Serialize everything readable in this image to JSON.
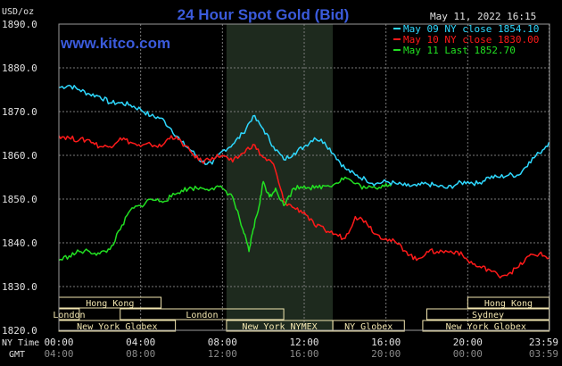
{
  "chart_data": {
    "type": "line",
    "title": "24 Hour Spot Gold (Bid)",
    "site": "www.kitco.com",
    "unit_label": "USD/oz",
    "datetime": "May 11, 2022 16:15",
    "ylim": [
      1820,
      1890
    ],
    "y_ticks": [
      "1890.0",
      "1880.0",
      "1870.0",
      "1860.0",
      "1850.0",
      "1840.0",
      "1830.0",
      "1820.0"
    ],
    "x_ticks_ny": [
      "00:00",
      "04:00",
      "08:00",
      "12:00",
      "16:00",
      "20:00",
      "23:59"
    ],
    "x_ticks_gmt": [
      "04:00",
      "08:00",
      "12:00",
      "16:00",
      "20:00",
      "00:00",
      "03:59"
    ],
    "ny_time_label": "NY Time",
    "gmt_label": "GMT",
    "nymex_session_hours": [
      8.2,
      13.4
    ],
    "colors": {
      "background": "#000000",
      "grid": "#7a7a7a",
      "session_shade": "#1e2a1e",
      "title": "#3b5bdc"
    },
    "legend": [
      {
        "label": "May 09 NY close 1854.10",
        "color": "#2ed8ff"
      },
      {
        "label": "May 10 NY close 1830.00",
        "color": "#ff1a1a"
      },
      {
        "label": "May 11 Last 1852.70",
        "color": "#22e022"
      }
    ],
    "series": [
      {
        "name": "May 09",
        "color": "#2ed8ff",
        "x": [
          0,
          0.5,
          1,
          1.5,
          2,
          2.5,
          3,
          3.5,
          4,
          4.5,
          5,
          5.5,
          6,
          6.5,
          7,
          7.5,
          8,
          8.5,
          9,
          9.5,
          10,
          10.5,
          11,
          11.5,
          12,
          12.5,
          13,
          13.5,
          14,
          14.5,
          15,
          15.5,
          16,
          16.5,
          17,
          17.5,
          18,
          18.5,
          19,
          19.5,
          20,
          20.5,
          21,
          21.5,
          22,
          22.5,
          23,
          23.5,
          23.98
        ],
        "y": [
          1875.5,
          1876,
          1875,
          1874,
          1873.5,
          1872,
          1872,
          1871.5,
          1870.5,
          1869,
          1868.5,
          1866,
          1863,
          1861,
          1858.5,
          1858,
          1861,
          1862.5,
          1865,
          1869,
          1866,
          1862,
          1859,
          1860.5,
          1862,
          1864,
          1863,
          1860,
          1857,
          1855.5,
          1854.5,
          1853.5,
          1854,
          1853.5,
          1853,
          1853,
          1853.5,
          1853,
          1852.5,
          1853.5,
          1854,
          1853.5,
          1855,
          1855,
          1855.5,
          1855.5,
          1858.5,
          1860.5,
          1863
        ]
      },
      {
        "name": "May 10",
        "color": "#ff1a1a",
        "x": [
          0,
          0.5,
          1,
          1.5,
          2,
          2.5,
          3,
          3.5,
          4,
          4.5,
          5,
          5.5,
          6,
          6.5,
          7,
          7.5,
          8,
          8.5,
          9,
          9.5,
          10,
          10.5,
          11,
          11.5,
          12,
          12.5,
          13,
          13.5,
          14,
          14.5,
          15,
          15.5,
          16,
          16.5,
          17,
          17.5,
          18,
          18.5,
          19,
          19.5,
          20,
          20.5,
          21,
          21.5,
          22,
          22.5,
          23,
          23.5,
          23.98
        ],
        "y": [
          1864.5,
          1864,
          1863.5,
          1863.5,
          1862,
          1862,
          1864,
          1863,
          1862,
          1862.5,
          1862,
          1864.5,
          1863,
          1860.5,
          1858.5,
          1859.5,
          1860,
          1858.5,
          1860.5,
          1862.5,
          1859.5,
          1858,
          1849.5,
          1848,
          1847,
          1844,
          1843,
          1842,
          1841,
          1846,
          1845,
          1842,
          1841,
          1840,
          1838,
          1836,
          1838,
          1838,
          1838,
          1838,
          1836,
          1834.5,
          1834,
          1832.5,
          1833,
          1834.5,
          1837,
          1837.5,
          1836.5
        ]
      },
      {
        "name": "May 11",
        "color": "#22e022",
        "x": [
          0,
          0.5,
          1,
          1.5,
          2,
          2.5,
          3,
          3.5,
          4,
          4.5,
          5,
          5.5,
          6,
          6.5,
          7,
          7.5,
          8,
          8.5,
          9,
          9.3,
          9.5,
          9.8,
          10,
          10.3,
          10.6,
          11,
          11.5,
          12,
          12.5,
          13,
          13.5,
          14,
          14.5,
          15,
          15.5,
          16,
          16.25
        ],
        "y": [
          1836,
          1837,
          1838,
          1838,
          1837.5,
          1838.5,
          1843,
          1847.5,
          1848.5,
          1850,
          1849.5,
          1850.5,
          1852,
          1852.5,
          1852.5,
          1852.5,
          1852.5,
          1850.5,
          1843,
          1838,
          1843,
          1848.5,
          1854,
          1850.5,
          1852.5,
          1848.5,
          1852.5,
          1853,
          1852.5,
          1853,
          1853.5,
          1855,
          1853.5,
          1852.5,
          1852.5,
          1853.5,
          1853
        ]
      }
    ],
    "markets_row1": [
      {
        "label": "Hong Kong",
        "start": 0,
        "end": 5.0,
        "color": "#f2e6b0"
      },
      {
        "label": "Hong Kong",
        "start": 20.0,
        "end": 23.98,
        "color": "#f2e6b0"
      }
    ],
    "markets_row2": [
      {
        "label": "London",
        "start": 0,
        "end": 1.0,
        "color": "#f2e6b0"
      },
      {
        "label": "London",
        "start": 3.0,
        "end": 11.0,
        "color": "#f2e6b0"
      },
      {
        "label": "Sydney",
        "start": 18.0,
        "end": 23.98,
        "color": "#f2e6b0"
      }
    ],
    "markets_row3": [
      {
        "label": "New York Globex",
        "start": 0,
        "end": 5.7,
        "color": "#f2e6b0"
      },
      {
        "label": "New York NYMEX",
        "start": 8.2,
        "end": 13.4,
        "color": "#f2e6b0"
      },
      {
        "label": "NY Globex",
        "start": 13.4,
        "end": 16.9,
        "color": "#f2e6b0"
      },
      {
        "label": "New York Globex",
        "start": 17.8,
        "end": 23.98,
        "color": "#f2e6b0"
      }
    ]
  }
}
